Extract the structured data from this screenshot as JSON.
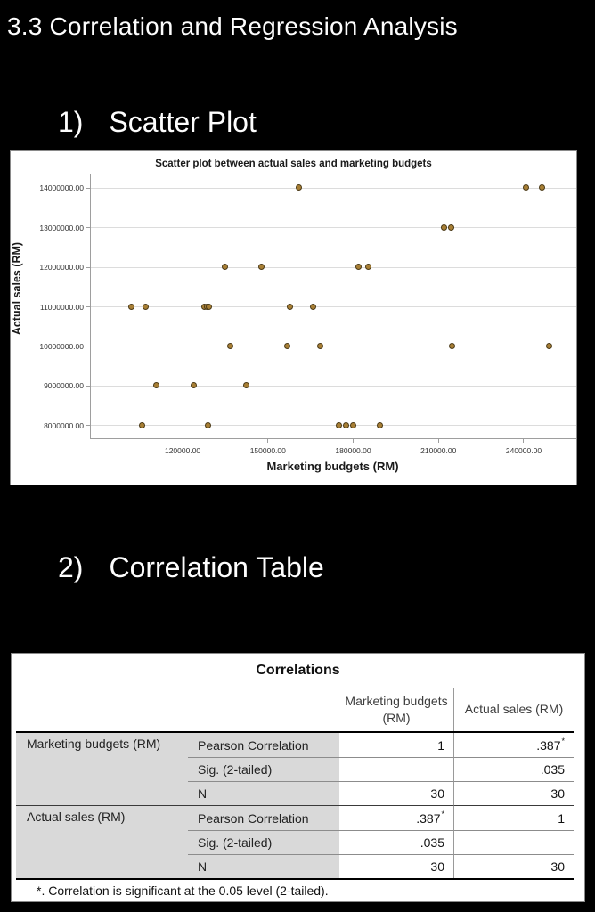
{
  "page": {
    "title": "3.3 Correlation and Regression Analysis",
    "background": "#000000"
  },
  "sections": [
    {
      "number": "1)",
      "label": "Scatter Plot"
    },
    {
      "number": "2)",
      "label": "Correlation Table"
    }
  ],
  "chart_data": {
    "type": "scatter",
    "title": "Scatter plot between actual sales and marketing budgets",
    "xlabel": "Marketing budgets (RM)",
    "ylabel": "Actual sales (RM)",
    "xlim": [
      87700,
      258500
    ],
    "ylim": [
      7685000,
      14360000
    ],
    "x_ticks": [
      120000,
      150000,
      180000,
      210000,
      240000
    ],
    "x_tick_labels": [
      "120000.00",
      "150000.00",
      "180000.00",
      "210000.00",
      "240000.00"
    ],
    "y_ticks": [
      8000000,
      9000000,
      10000000,
      11000000,
      12000000,
      13000000,
      14000000
    ],
    "y_tick_labels": [
      "8000000.00",
      "9000000.00",
      "10000000.00",
      "11000000.00",
      "12000000.00",
      "13000000.00",
      "14000000.00"
    ],
    "grid": "horizontal-only",
    "legend": "none",
    "colors": {
      "grid": "#dcdcdc",
      "axis": "#9e9e9e",
      "background": "#ffffff"
    },
    "marker": {
      "shape": "circle",
      "fill": "#a87f35",
      "stroke": "#4b3a17"
    },
    "points": [
      [
        161000,
        14000000
      ],
      [
        241000,
        14000000
      ],
      [
        246500,
        14000000
      ],
      [
        212000,
        13000000
      ],
      [
        214500,
        13000000
      ],
      [
        135000,
        12000000
      ],
      [
        148000,
        12000000
      ],
      [
        182000,
        12000000
      ],
      [
        185500,
        12000000
      ],
      [
        102000,
        11000000
      ],
      [
        107000,
        11000000
      ],
      [
        127800,
        11000000
      ],
      [
        128600,
        11000000
      ],
      [
        129400,
        11000000
      ],
      [
        158000,
        11000000
      ],
      [
        166000,
        11000000
      ],
      [
        137000,
        10000000
      ],
      [
        157000,
        10000000
      ],
      [
        168500,
        10000000
      ],
      [
        215000,
        10000000
      ],
      [
        249000,
        10000000
      ],
      [
        111000,
        9000000
      ],
      [
        124000,
        9000000
      ],
      [
        142500,
        9000000
      ],
      [
        106000,
        8000000
      ],
      [
        129000,
        8000000
      ],
      [
        175000,
        8000000
      ],
      [
        177500,
        8000000
      ],
      [
        180000,
        8000000
      ],
      [
        189500,
        8000000
      ]
    ]
  },
  "table": {
    "title": "Correlations",
    "col_headers": [
      "Marketing budgets (RM)",
      "Actual sales (RM)"
    ],
    "groups": [
      {
        "label": "Marketing budgets (RM)",
        "rows": [
          {
            "stat": "Pearson Correlation",
            "v1": "1",
            "v1sup": "",
            "v2": ".387",
            "v2sup": "*"
          },
          {
            "stat": "Sig. (2-tailed)",
            "v1": "",
            "v1sup": "",
            "v2": ".035",
            "v2sup": ""
          },
          {
            "stat": "N",
            "v1": "30",
            "v1sup": "",
            "v2": "30",
            "v2sup": ""
          }
        ]
      },
      {
        "label": "Actual sales (RM)",
        "rows": [
          {
            "stat": "Pearson Correlation",
            "v1": ".387",
            "v1sup": "*",
            "v2": "1",
            "v2sup": ""
          },
          {
            "stat": "Sig. (2-tailed)",
            "v1": ".035",
            "v1sup": "",
            "v2": "",
            "v2sup": ""
          },
          {
            "stat": "N",
            "v1": "30",
            "v1sup": "",
            "v2": "30",
            "v2sup": ""
          }
        ]
      }
    ],
    "footnote": "*. Correlation is significant at the 0.05 level (2-tailed)."
  }
}
